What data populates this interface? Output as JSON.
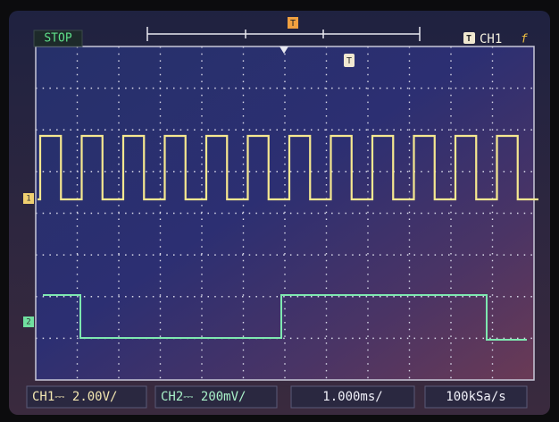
{
  "header": {
    "status": "STOP",
    "trigger_marker": "T",
    "trigger_source": "CH1",
    "trigger_edge": "f"
  },
  "screen": {
    "trigger_position_marker": "T",
    "channel_markers": [
      "1",
      "2"
    ]
  },
  "footer": {
    "ch1": "CH1⎓ 2.00V/",
    "ch2": "CH2⎓ 200mV/",
    "timebase": "1.000ms/",
    "sample_rate": "100kSa/s"
  }
}
